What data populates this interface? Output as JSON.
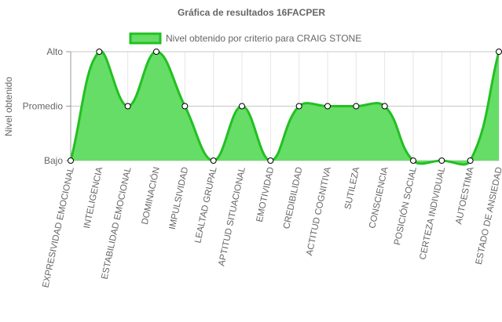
{
  "chart_data": {
    "type": "area",
    "title": "Gráfica de resultados 16FACPER",
    "y_label": "Nivel obtenido",
    "categories": [
      "EXPRESIVIDAD EMOCIONAL",
      "INTELIGENCIA",
      "ESTABILIDAD EMOCIONAL",
      "DOMINACIÓN",
      "IMPULSIVIDAD",
      "LEALTAD GRUPAL",
      "APTITUD SITUACIONAL",
      "EMOTIVIDAD",
      "CREDIBILIDAD",
      "ACTITUD COGNITIVA",
      "SUTILEZA",
      "CONSCIENCIA",
      "POSICIÓN SOCIAL",
      "CERTEZA INDIVIDUAL",
      "AUTOESTIMA",
      "ESTADO DE ANSIEDAD"
    ],
    "series": [
      {
        "name": "Nivel obtenido por criterio para CRAIG STONE",
        "color": "#22c022",
        "fill": "#66dd66",
        "values": [
          1,
          3,
          2,
          3,
          2,
          1,
          2,
          1,
          2,
          2,
          2,
          2,
          1,
          1,
          1,
          3
        ]
      }
    ],
    "ylim": [
      1,
      3
    ],
    "yticks": [
      {
        "value": 1,
        "label": "Bajo"
      },
      {
        "value": 2,
        "label": "Promedio"
      },
      {
        "value": 3,
        "label": "Alto"
      }
    ],
    "grid": true,
    "legend": "top"
  }
}
